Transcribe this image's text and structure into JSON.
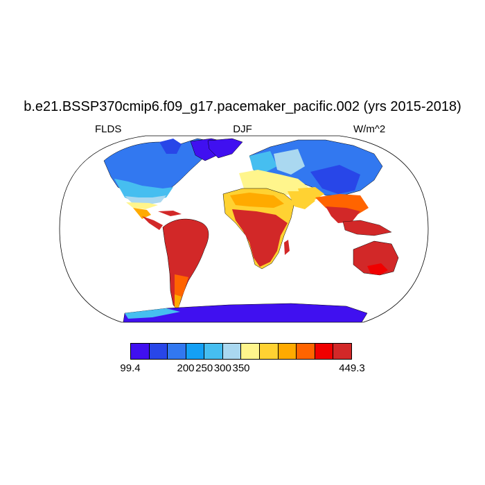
{
  "title": "b.e21.BSSP370cmip6.f09_g17.pacemaker_pacific.002 (yrs 2015-2018)",
  "left_label": "FLDS",
  "center_label": "DJF",
  "right_label": "W/m^2",
  "colorbar": {
    "colors": [
      "#4010f0",
      "#2846e8",
      "#3278f0",
      "#14a0f5",
      "#46bef0",
      "#aad8f0",
      "#fff58c",
      "#ffd232",
      "#ffaa00",
      "#ff6400",
      "#f00000",
      "#d22828"
    ],
    "tick_labels": [
      "99.4",
      "200",
      "250",
      "300",
      "350",
      "449.3"
    ]
  }
}
